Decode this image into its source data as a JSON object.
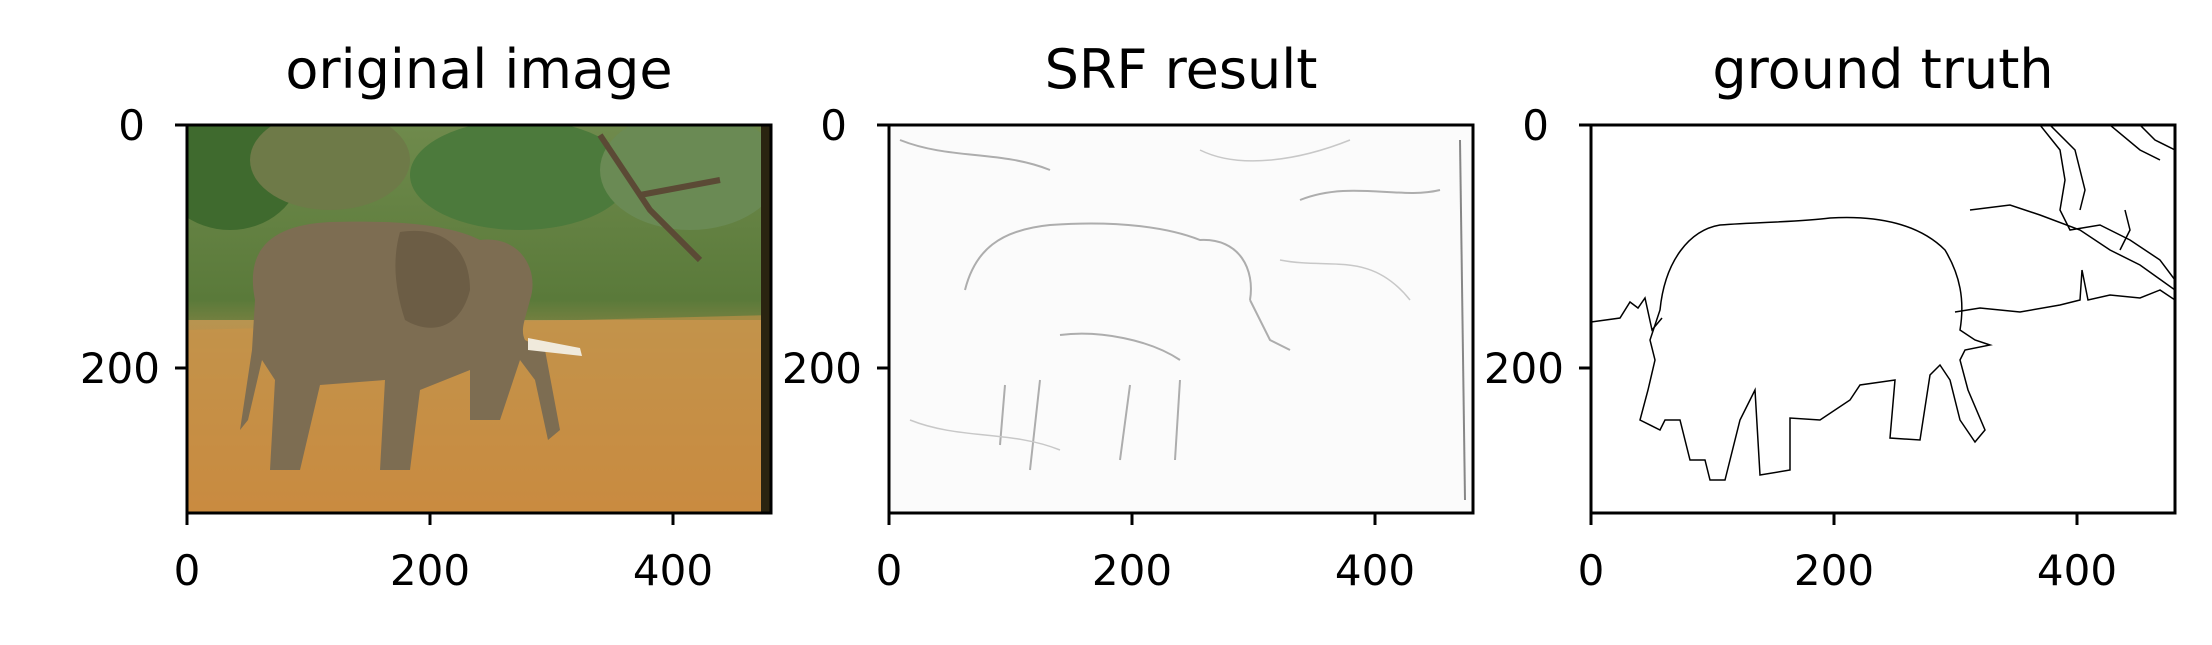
{
  "figure": {
    "panels": [
      {
        "title": "original image",
        "image": "photo of an elephant walking through dry golden grass with green trees behind",
        "x_ticks": [
          "0",
          "200",
          "400"
        ],
        "y_ticks": [
          "0",
          "200"
        ]
      },
      {
        "title": "SRF result",
        "image": "faint grey edge map outlining the elephant on a white background",
        "x_ticks": [
          "0",
          "200",
          "400"
        ],
        "y_ticks": [
          "0",
          "200"
        ]
      },
      {
        "title": "ground truth",
        "image": "thin black contour lines of the elephant, horizon and branches on white",
        "x_ticks": [
          "0",
          "200",
          "400"
        ],
        "y_ticks": [
          "0",
          "200"
        ]
      }
    ]
  }
}
